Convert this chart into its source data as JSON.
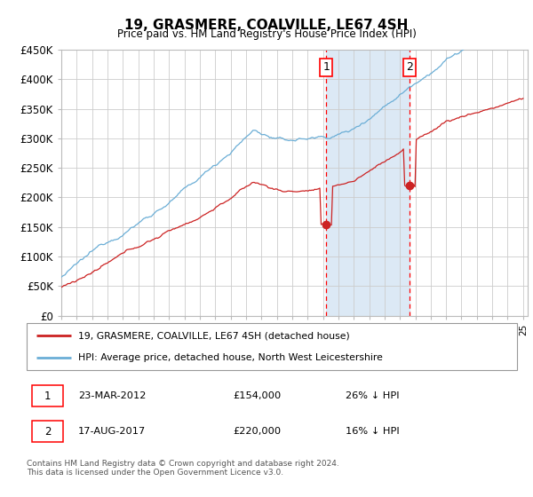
{
  "title": "19, GRASMERE, COALVILLE, LE67 4SH",
  "subtitle": "Price paid vs. HM Land Registry's House Price Index (HPI)",
  "yticks": [
    0,
    50000,
    100000,
    150000,
    200000,
    250000,
    300000,
    350000,
    400000,
    450000
  ],
  "ytick_labels": [
    "£0",
    "£50K",
    "£100K",
    "£150K",
    "£200K",
    "£250K",
    "£300K",
    "£350K",
    "£400K",
    "£450K"
  ],
  "hpi_color": "#6baed6",
  "price_color": "#cc2222",
  "shade_color": "#dce9f5",
  "grid_color": "#cccccc",
  "marker1_year": 2012.21,
  "marker1_price": 154000,
  "marker2_year": 2017.63,
  "marker2_price": 220000,
  "legend_label_red": "19, GRASMERE, COALVILLE, LE67 4SH (detached house)",
  "legend_label_blue": "HPI: Average price, detached house, North West Leicestershire",
  "row1_num": "1",
  "row1_date": "23-MAR-2012",
  "row1_price": "£154,000",
  "row1_pct": "26% ↓ HPI",
  "row2_num": "2",
  "row2_date": "17-AUG-2017",
  "row2_price": "£220,000",
  "row2_pct": "16% ↓ HPI",
  "footer": "Contains HM Land Registry data © Crown copyright and database right 2024.\nThis data is licensed under the Open Government Licence v3.0."
}
